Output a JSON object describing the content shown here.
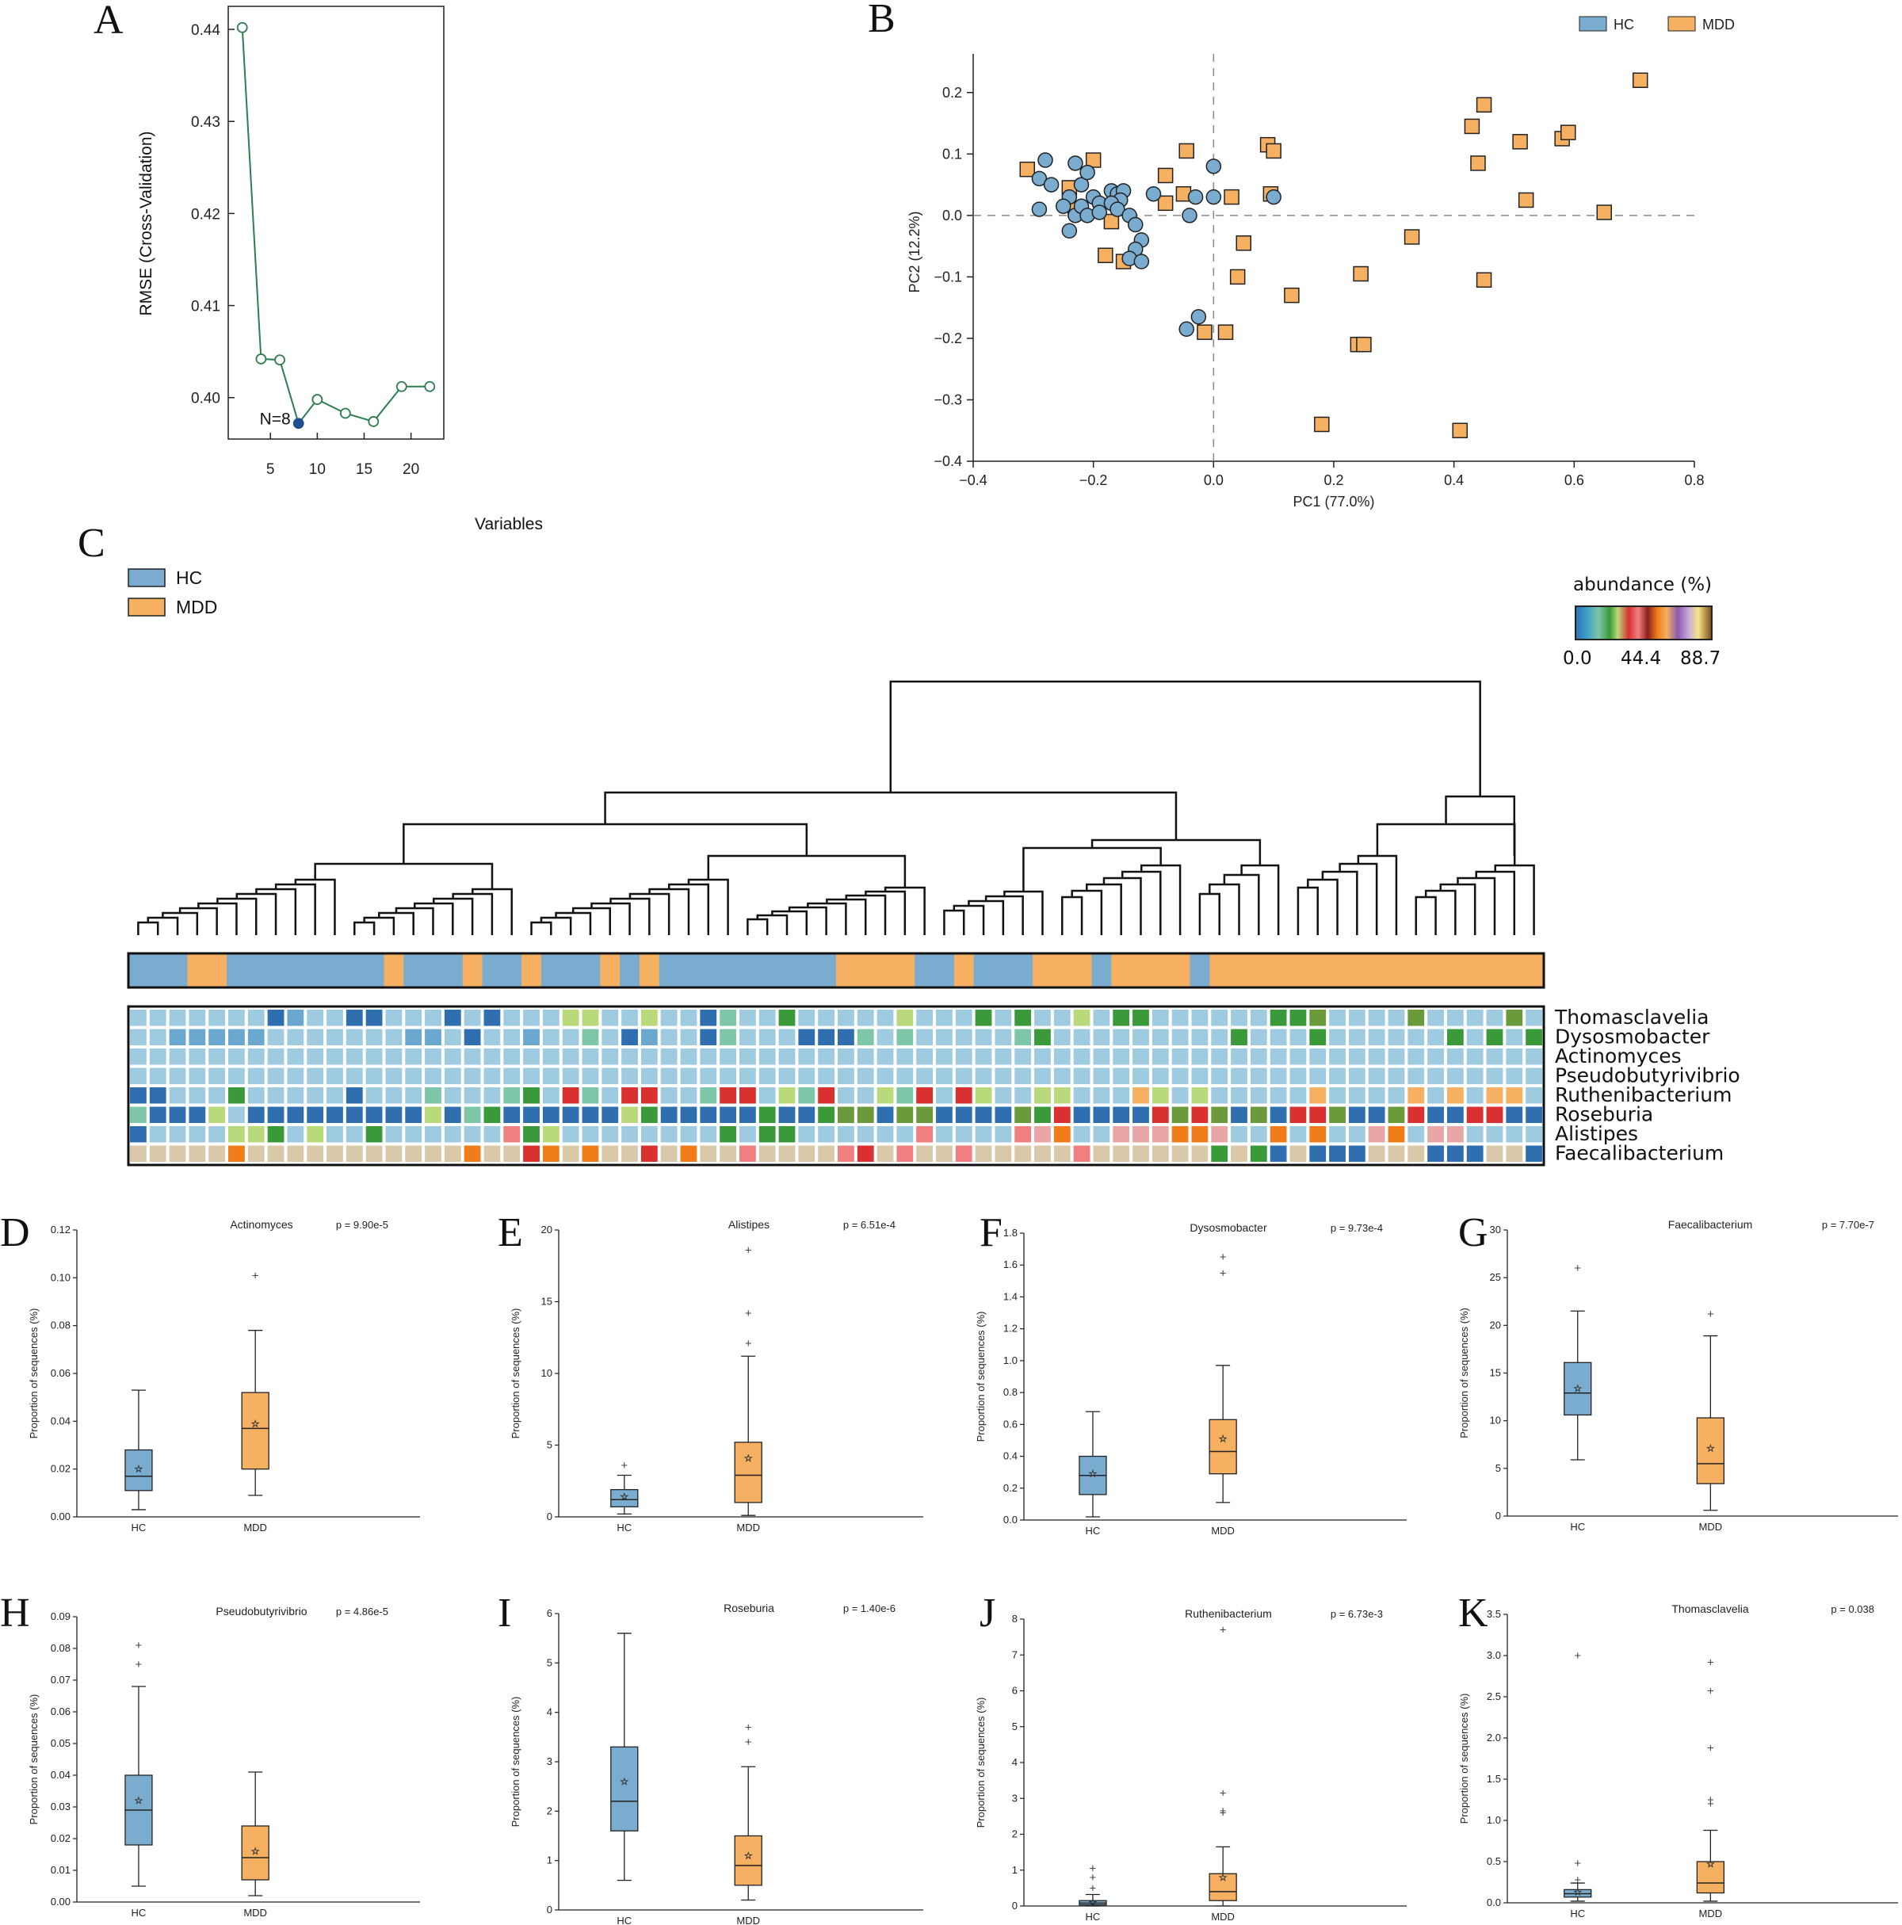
{
  "colors": {
    "hc": "#7aacd0",
    "mdd": "#f5b062",
    "line": "#2e7d4f",
    "highlight": "#1f4f8f",
    "n_label": "#c0506a"
  },
  "panels": {
    "a": "A",
    "b": "B",
    "c": "C",
    "d": "D",
    "e": "E",
    "f": "F",
    "g": "G",
    "h": "H",
    "i": "I",
    "j": "J",
    "k": "K"
  },
  "chart_data": [
    {
      "id": "A",
      "type": "line",
      "xlabel": "Variables",
      "ylabel": "RMSE (Cross-Validation)",
      "x": [
        2,
        4,
        6,
        8,
        10,
        13,
        16,
        19,
        22
      ],
      "y": [
        0.4402,
        0.4042,
        0.4041,
        0.3972,
        0.3998,
        0.3983,
        0.3974,
        0.4012,
        0.4012
      ],
      "xlim": [
        0.5,
        23.5
      ],
      "ylim": [
        0.3955,
        0.4425
      ],
      "xticks": [
        5,
        10,
        15,
        20
      ],
      "yticks": [
        0.4,
        0.41,
        0.42,
        0.43,
        0.44
      ],
      "highlight": {
        "x": 8,
        "y": 0.3972,
        "label": "N=8"
      }
    },
    {
      "id": "B",
      "type": "scatter",
      "xlabel": "PC1 (77.0%)",
      "ylabel": "PC2 (12.2%)",
      "xlim": [
        -0.4,
        0.8
      ],
      "ylim": [
        -0.4,
        0.25
      ],
      "xticks": [
        -0.4,
        -0.2,
        0.0,
        0.2,
        0.4,
        0.6,
        0.8
      ],
      "yticks": [
        -0.4,
        -0.3,
        -0.2,
        -0.1,
        0.0,
        0.1,
        0.2
      ],
      "legend": [
        "HC",
        "MDD"
      ],
      "series": [
        {
          "name": "HC",
          "points": [
            [
              -0.28,
              0.09
            ],
            [
              -0.29,
              0.06
            ],
            [
              -0.27,
              0.05
            ],
            [
              -0.29,
              0.01
            ],
            [
              -0.23,
              0.085
            ],
            [
              -0.22,
              0.05
            ],
            [
              -0.21,
              0.07
            ],
            [
              -0.2,
              0.03
            ],
            [
              -0.24,
              0.03
            ],
            [
              -0.25,
              0.015
            ],
            [
              -0.23,
              0.0
            ],
            [
              -0.22,
              0.015
            ],
            [
              -0.21,
              0.0
            ],
            [
              -0.19,
              0.02
            ],
            [
              -0.17,
              0.04
            ],
            [
              -0.16,
              0.035
            ],
            [
              -0.15,
              0.04
            ],
            [
              -0.155,
              0.025
            ],
            [
              -0.17,
              0.02
            ],
            [
              -0.16,
              0.01
            ],
            [
              -0.14,
              0.0
            ],
            [
              -0.13,
              -0.015
            ],
            [
              -0.12,
              -0.04
            ],
            [
              -0.13,
              -0.055
            ],
            [
              -0.14,
              -0.07
            ],
            [
              -0.12,
              -0.075
            ],
            [
              -0.1,
              0.035
            ],
            [
              -0.04,
              0.0
            ],
            [
              -0.03,
              0.03
            ],
            [
              0.0,
              0.03
            ],
            [
              0.0,
              0.08
            ],
            [
              -0.025,
              -0.165
            ],
            [
              -0.045,
              -0.185
            ],
            [
              -0.24,
              -0.025
            ],
            [
              -0.19,
              0.005
            ],
            [
              0.1,
              0.03
            ]
          ]
        },
        {
          "name": "MDD",
          "points": [
            [
              -0.31,
              0.075
            ],
            [
              -0.2,
              0.09
            ],
            [
              -0.24,
              0.045
            ],
            [
              -0.23,
              0.01
            ],
            [
              -0.17,
              -0.01
            ],
            [
              -0.18,
              -0.065
            ],
            [
              -0.15,
              -0.075
            ],
            [
              -0.08,
              0.02
            ],
            [
              -0.08,
              0.065
            ],
            [
              -0.05,
              0.035
            ],
            [
              -0.045,
              0.105
            ],
            [
              -0.015,
              -0.19
            ],
            [
              0.02,
              -0.19
            ],
            [
              0.03,
              0.03
            ],
            [
              0.04,
              -0.1
            ],
            [
              0.05,
              -0.045
            ],
            [
              0.09,
              0.115
            ],
            [
              0.095,
              0.035
            ],
            [
              0.1,
              0.105
            ],
            [
              0.13,
              -0.13
            ],
            [
              0.18,
              -0.34
            ],
            [
              0.24,
              -0.21
            ],
            [
              0.25,
              -0.21
            ],
            [
              0.245,
              -0.095
            ],
            [
              0.33,
              -0.035
            ],
            [
              0.41,
              -0.35
            ],
            [
              0.43,
              0.145
            ],
            [
              0.44,
              0.085
            ],
            [
              0.45,
              0.18
            ],
            [
              0.45,
              -0.105
            ],
            [
              0.51,
              0.12
            ],
            [
              0.52,
              0.025
            ],
            [
              0.58,
              0.125
            ],
            [
              0.59,
              0.135
            ],
            [
              0.65,
              0.005
            ],
            [
              0.71,
              0.22
            ]
          ]
        }
      ]
    },
    {
      "id": "C",
      "type": "heatmap",
      "legend": [
        "HC",
        "MDD"
      ],
      "colorbar": {
        "title": "abundance (%)",
        "min": "0.0",
        "mid": "44.4",
        "max": "88.7"
      },
      "rows": [
        "Thomasclavelia",
        "Dysosmobacter",
        "Actinomyces",
        "Pseudobutyrivibrio",
        "Ruthenibacterium",
        "Roseburia",
        "Alistipes",
        "Faecalibacterium"
      ],
      "n_samples": 72,
      "group_bar": [
        {
          "group": "HC",
          "n": 3
        },
        {
          "group": "MDD",
          "n": 2
        },
        {
          "group": "HC",
          "n": 8
        },
        {
          "group": "MDD",
          "n": 1
        },
        {
          "group": "HC",
          "n": 3
        },
        {
          "group": "MDD",
          "n": 1
        },
        {
          "group": "HC",
          "n": 2
        },
        {
          "group": "MDD",
          "n": 1
        },
        {
          "group": "HC",
          "n": 3
        },
        {
          "group": "MDD",
          "n": 1
        },
        {
          "group": "HC",
          "n": 1
        },
        {
          "group": "MDD",
          "n": 1
        },
        {
          "group": "HC",
          "n": 9
        },
        {
          "group": "MDD",
          "n": 4
        },
        {
          "group": "HC",
          "n": 2
        },
        {
          "group": "MDD",
          "n": 1
        },
        {
          "group": "HC",
          "n": 3
        },
        {
          "group": "MDD",
          "n": 3
        },
        {
          "group": "HC",
          "n": 1
        },
        {
          "group": "MDD",
          "n": 4
        },
        {
          "group": "HC",
          "n": 1
        },
        {
          "group": "MDD",
          "n": 17
        }
      ]
    },
    {
      "id": "D",
      "type": "box",
      "title": "Actinomyces",
      "p": "p = 9.90e-5",
      "ylabel": "Proportion of sequences (%)",
      "categories": [
        "HC",
        "MDD"
      ],
      "ylim": [
        0,
        0.12
      ],
      "yticks": [
        0.0,
        0.02,
        0.04,
        0.06,
        0.08,
        0.1,
        0.12
      ],
      "decimals": 2,
      "boxes": [
        {
          "group": "HC",
          "q1": 0.011,
          "median": 0.017,
          "q3": 0.028,
          "wlo": 0.003,
          "whi": 0.053,
          "mean": 0.02,
          "outliers": []
        },
        {
          "group": "MDD",
          "q1": 0.02,
          "median": 0.037,
          "q3": 0.052,
          "wlo": 0.009,
          "whi": 0.078,
          "mean": 0.039,
          "outliers": [
            0.101
          ]
        }
      ]
    },
    {
      "id": "E",
      "type": "box",
      "title": "Alistipes",
      "p": "p = 6.51e-4",
      "ylabel": "Proportion of sequences (%)",
      "categories": [
        "HC",
        "MDD"
      ],
      "ylim": [
        0,
        20
      ],
      "yticks": [
        0,
        5,
        10,
        15,
        20
      ],
      "decimals": 0,
      "boxes": [
        {
          "group": "HC",
          "q1": 0.7,
          "median": 1.2,
          "q3": 1.9,
          "wlo": 0.2,
          "whi": 2.9,
          "mean": 1.4,
          "outliers": [
            3.6
          ]
        },
        {
          "group": "MDD",
          "q1": 1.0,
          "median": 2.9,
          "q3": 5.2,
          "wlo": 0.1,
          "whi": 11.2,
          "mean": 4.1,
          "outliers": [
            12.1,
            14.2,
            18.6
          ]
        }
      ]
    },
    {
      "id": "F",
      "type": "box",
      "title": "Dysosmobacter",
      "p": "p = 9.73e-4",
      "ylabel": "Proportion of sequences (%)",
      "categories": [
        "HC",
        "MDD"
      ],
      "ylim": [
        0,
        1.8
      ],
      "yticks": [
        0.0,
        0.2,
        0.4,
        0.6,
        0.8,
        1.0,
        1.2,
        1.4,
        1.6,
        1.8
      ],
      "decimals": 1,
      "boxes": [
        {
          "group": "HC",
          "q1": 0.16,
          "median": 0.28,
          "q3": 0.4,
          "wlo": 0.02,
          "whi": 0.68,
          "mean": 0.29,
          "outliers": []
        },
        {
          "group": "MDD",
          "q1": 0.29,
          "median": 0.43,
          "q3": 0.63,
          "wlo": 0.11,
          "whi": 0.97,
          "mean": 0.51,
          "outliers": [
            1.55,
            1.65
          ]
        }
      ]
    },
    {
      "id": "G",
      "type": "box",
      "title": "Faecalibacterium",
      "p": "p = 7.70e-7",
      "ylabel": "Proportion of sequences (%)",
      "categories": [
        "HC",
        "MDD"
      ],
      "ylim": [
        0,
        30
      ],
      "yticks": [
        0,
        5,
        10,
        15,
        20,
        25,
        30
      ],
      "decimals": 0,
      "boxes": [
        {
          "group": "HC",
          "q1": 10.6,
          "median": 12.9,
          "q3": 16.1,
          "wlo": 5.9,
          "whi": 21.5,
          "mean": 13.4,
          "outliers": [
            26.0
          ]
        },
        {
          "group": "MDD",
          "q1": 3.4,
          "median": 5.5,
          "q3": 10.3,
          "wlo": 0.6,
          "whi": 18.9,
          "mean": 7.1,
          "outliers": [
            21.2
          ]
        }
      ]
    },
    {
      "id": "H",
      "type": "box",
      "title": "Pseudobutyrivibrio",
      "p": "p = 4.86e-5",
      "ylabel": "Proportion of sequences (%)",
      "categories": [
        "HC",
        "MDD"
      ],
      "ylim": [
        0,
        0.09
      ],
      "yticks": [
        0.0,
        0.01,
        0.02,
        0.03,
        0.04,
        0.05,
        0.06,
        0.07,
        0.08,
        0.09
      ],
      "decimals": 2,
      "boxes": [
        {
          "group": "HC",
          "q1": 0.018,
          "median": 0.029,
          "q3": 0.04,
          "wlo": 0.005,
          "whi": 0.068,
          "mean": 0.032,
          "outliers": [
            0.075,
            0.081
          ]
        },
        {
          "group": "MDD",
          "q1": 0.007,
          "median": 0.014,
          "q3": 0.024,
          "wlo": 0.002,
          "whi": 0.041,
          "mean": 0.016,
          "outliers": []
        }
      ]
    },
    {
      "id": "I",
      "type": "box",
      "title": "Roseburia",
      "p": "p = 1.40e-6",
      "ylabel": "Proportion of sequences (%)",
      "categories": [
        "HC",
        "MDD"
      ],
      "ylim": [
        0,
        6
      ],
      "yticks": [
        0,
        1,
        2,
        3,
        4,
        5,
        6
      ],
      "decimals": 0,
      "boxes": [
        {
          "group": "HC",
          "q1": 1.6,
          "median": 2.2,
          "q3": 3.3,
          "wlo": 0.6,
          "whi": 5.6,
          "mean": 2.6,
          "outliers": []
        },
        {
          "group": "MDD",
          "q1": 0.5,
          "median": 0.9,
          "q3": 1.5,
          "wlo": 0.2,
          "whi": 2.9,
          "mean": 1.1,
          "outliers": [
            3.4,
            3.7
          ]
        }
      ]
    },
    {
      "id": "J",
      "type": "box",
      "title": "Ruthenibacterium",
      "p": "p = 6.73e-3",
      "ylabel": "Proportion of sequences (%)",
      "categories": [
        "HC",
        "MDD"
      ],
      "ylim": [
        0,
        8
      ],
      "yticks": [
        0,
        1,
        2,
        3,
        4,
        5,
        6,
        7,
        8
      ],
      "decimals": 0,
      "boxes": [
        {
          "group": "HC",
          "q1": 0.03,
          "median": 0.08,
          "q3": 0.15,
          "wlo": 0.0,
          "whi": 0.32,
          "mean": 0.1,
          "outliers": [
            0.5,
            0.8,
            1.05
          ]
        },
        {
          "group": "MDD",
          "q1": 0.15,
          "median": 0.4,
          "q3": 0.9,
          "wlo": 0.0,
          "whi": 1.65,
          "mean": 0.8,
          "outliers": [
            2.6,
            2.65,
            3.15,
            7.7
          ]
        }
      ]
    },
    {
      "id": "K",
      "type": "box",
      "title": "Thomasclavelia",
      "p": "p = 0.038",
      "ylabel": "Proportion of sequences (%)",
      "categories": [
        "HC",
        "MDD"
      ],
      "ylim": [
        0,
        3.5
      ],
      "yticks": [
        0.0,
        0.5,
        1.0,
        1.5,
        2.0,
        2.5,
        3.0,
        3.5
      ],
      "decimals": 1,
      "boxes": [
        {
          "group": "HC",
          "q1": 0.07,
          "median": 0.11,
          "q3": 0.16,
          "wlo": 0.02,
          "whi": 0.24,
          "mean": 0.13,
          "outliers": [
            0.28,
            0.48,
            3.0
          ]
        },
        {
          "group": "MDD",
          "q1": 0.12,
          "median": 0.24,
          "q3": 0.5,
          "wlo": 0.02,
          "whi": 0.88,
          "mean": 0.47,
          "outliers": [
            1.2,
            1.25,
            1.88,
            2.57,
            2.92
          ]
        }
      ]
    }
  ]
}
